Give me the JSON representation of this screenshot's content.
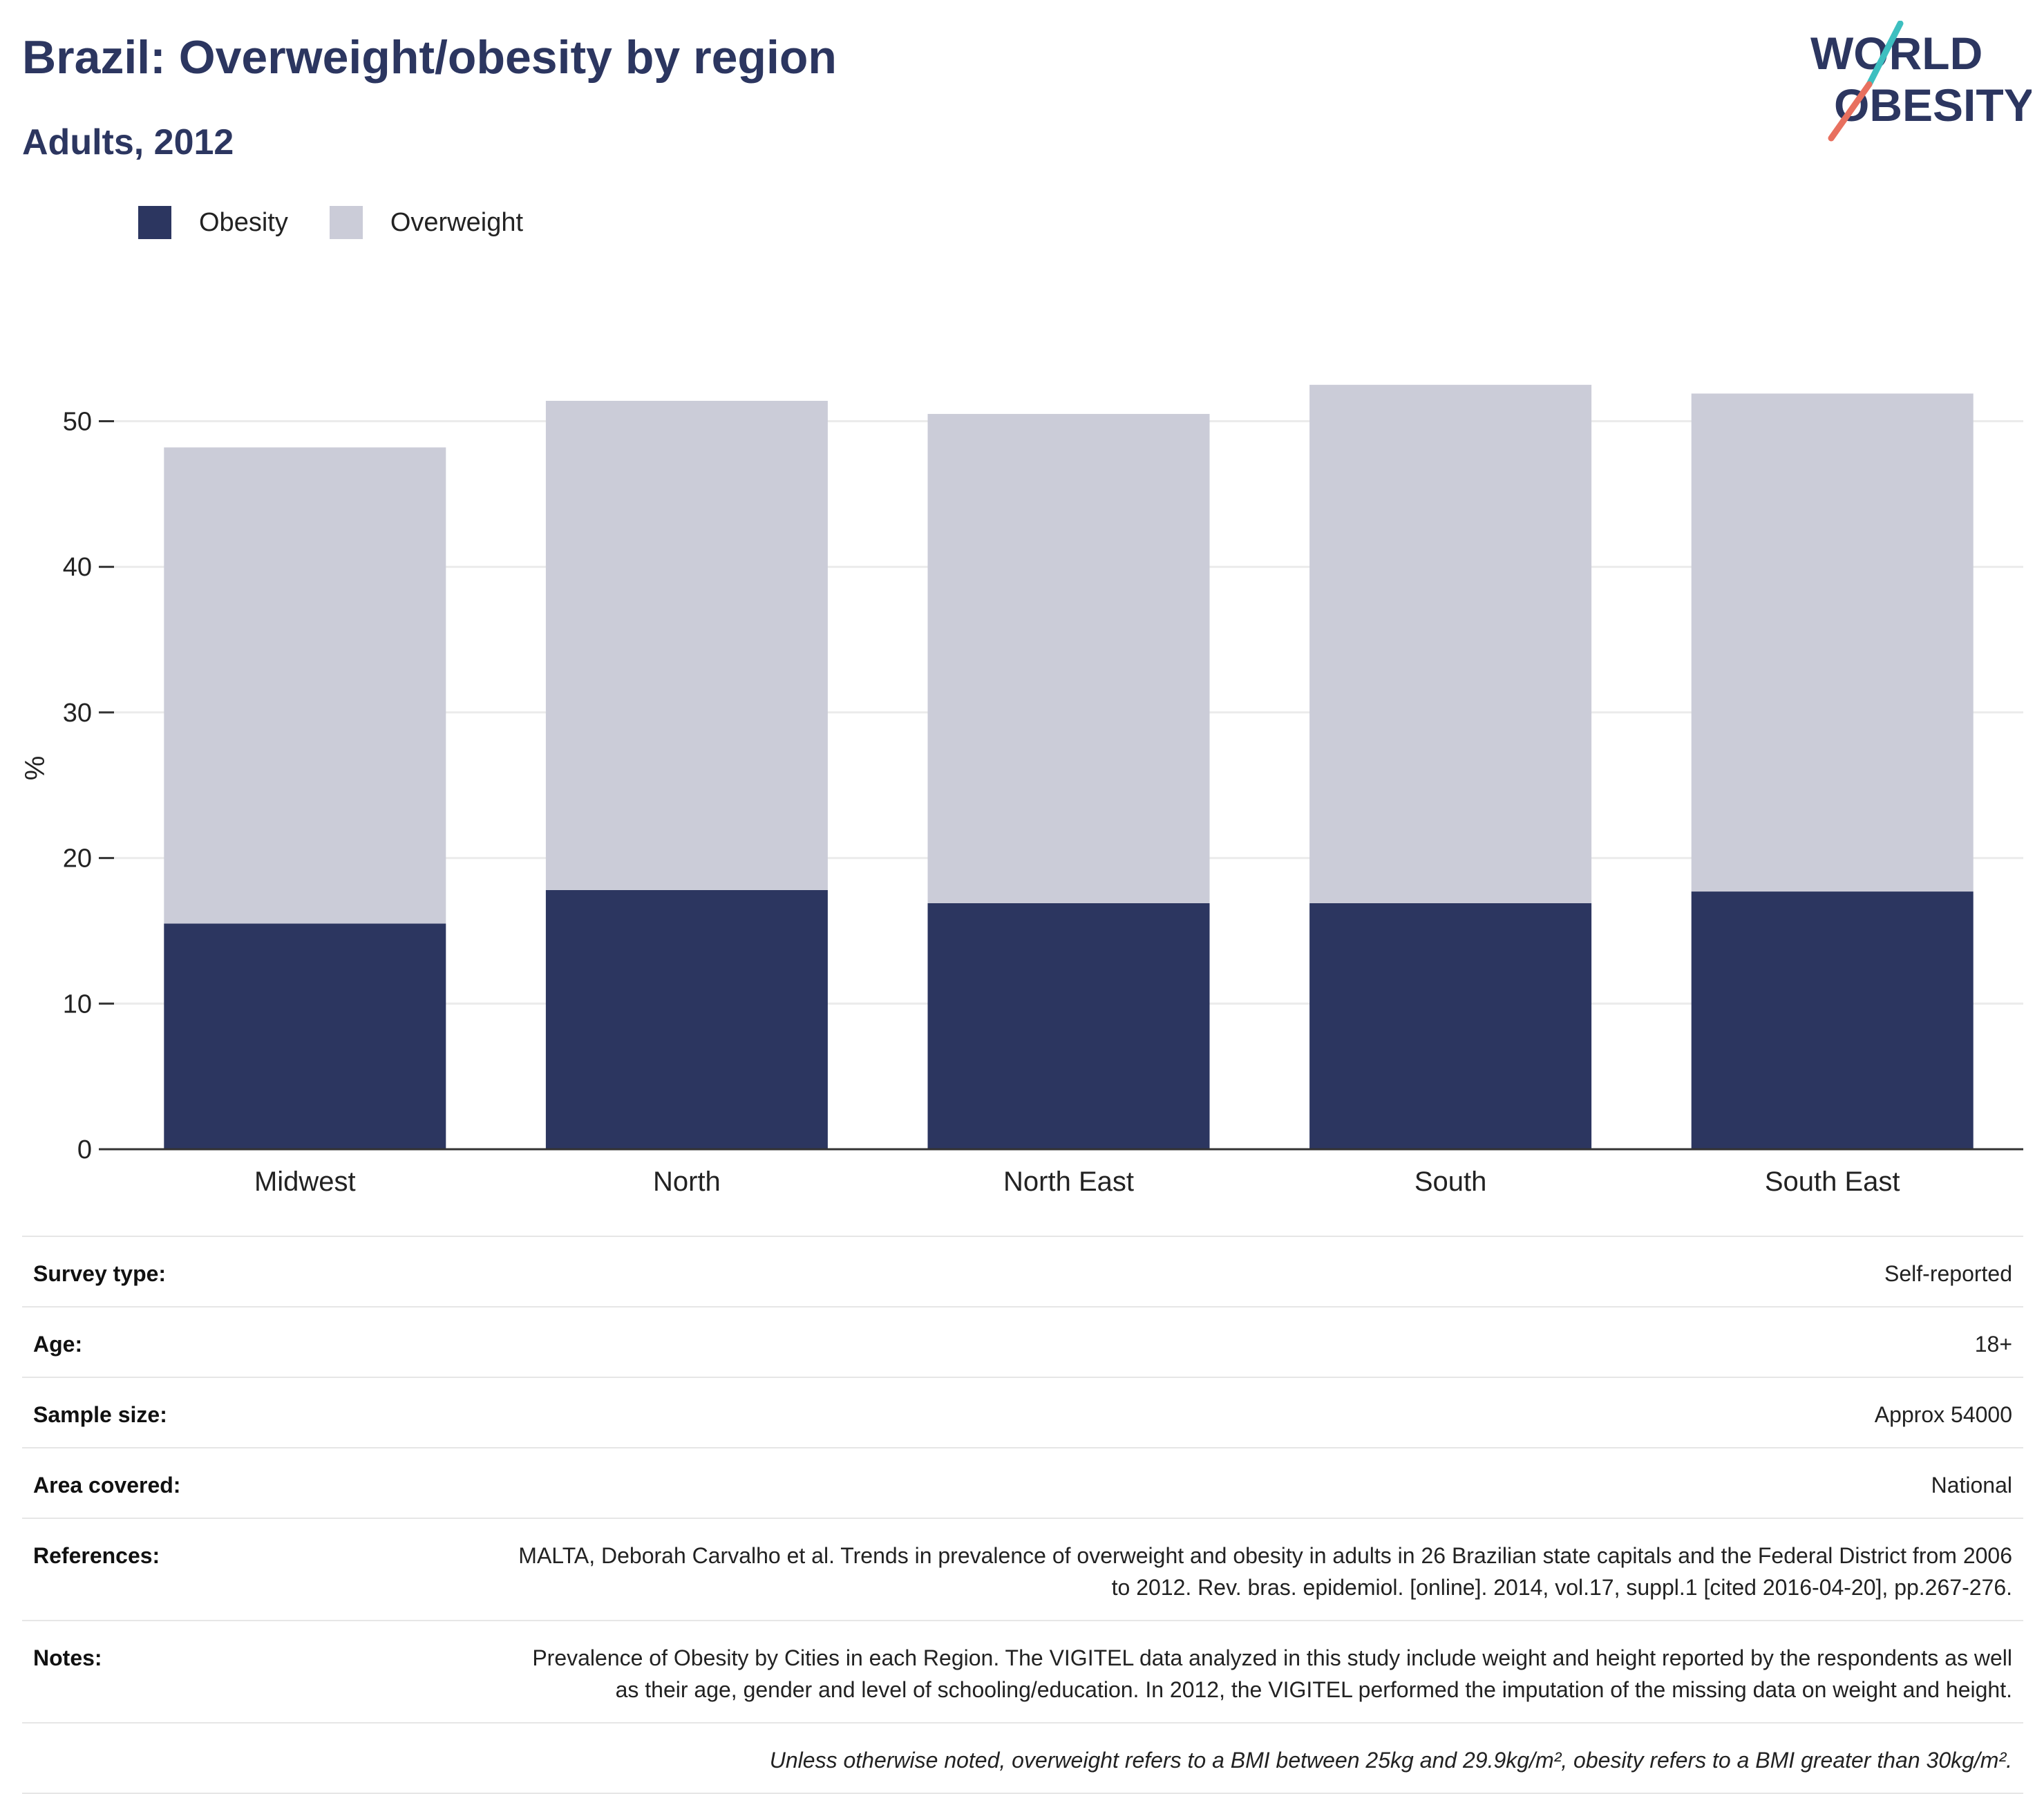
{
  "header": {
    "title": "Brazil: Overweight/obesity by region",
    "subtitle": "Adults, 2012"
  },
  "logo": {
    "line1": "WORLD",
    "line2": "OBESITY",
    "accent_teal": "#3dbfc0",
    "accent_coral": "#e8705f"
  },
  "legend": [
    {
      "label": "Obesity",
      "color": "#2c3660"
    },
    {
      "label": "Overweight",
      "color": "#cbccd8"
    }
  ],
  "chart_data": {
    "type": "bar",
    "stacked": true,
    "categories": [
      "Midwest",
      "North",
      "North East",
      "South",
      "South East"
    ],
    "series": [
      {
        "name": "Obesity",
        "color": "#2c3660",
        "values": [
          15.5,
          17.8,
          16.9,
          16.9,
          17.7
        ]
      },
      {
        "name": "Overweight",
        "color": "#cbccd8",
        "values": [
          32.7,
          33.6,
          33.6,
          35.6,
          34.2
        ]
      }
    ],
    "ylabel": "%",
    "xlabel": "",
    "ylim": [
      0,
      55
    ],
    "yticks": [
      0,
      10,
      20,
      30,
      40,
      50
    ],
    "grid": true,
    "legend_position": "top-left"
  },
  "info": [
    {
      "label": "Survey type:",
      "value": "Self-reported"
    },
    {
      "label": "Age:",
      "value": "18+"
    },
    {
      "label": "Sample size:",
      "value": "Approx 54000"
    },
    {
      "label": "Area covered:",
      "value": "National"
    },
    {
      "label": "References:",
      "value": "MALTA, Deborah Carvalho et al. Trends in prevalence of overweight and obesity in adults in 26 Brazilian state capitals and the Federal District from 2006 to 2012. Rev. bras. epidemiol. [online]. 2014, vol.17, suppl.1 [cited 2016-04-20], pp.267-276."
    },
    {
      "label": "Notes:",
      "value": "Prevalence of Obesity by Cities in each Region. The VIGITEL data analyzed in this study include weight and height reported by the respondents as well as their age, gender and level of schooling/education. In 2012, the VIGITEL performed the imputation of the missing data on weight and height."
    }
  ],
  "footnote": "Unless otherwise noted, overweight refers to a BMI between 25kg and 29.9kg/m², obesity refers to a BMI greater than 30kg/m²."
}
